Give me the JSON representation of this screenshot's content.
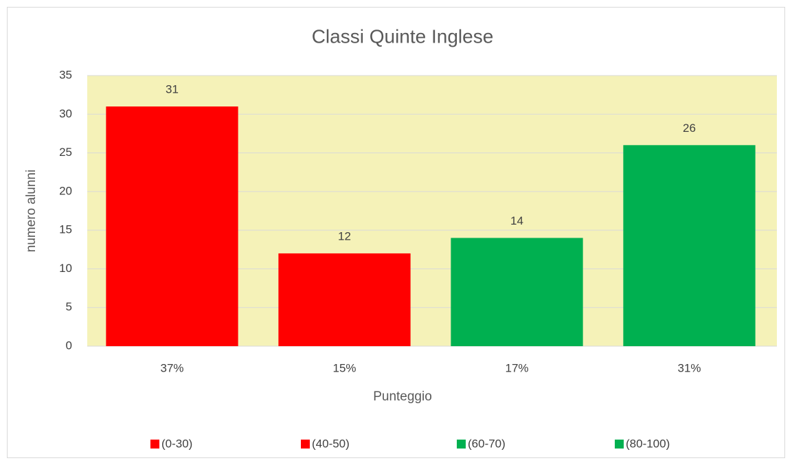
{
  "chart_data": {
    "type": "bar",
    "title": "Classi Quinte Inglese",
    "x_label": "Punteggio",
    "y_label": "numero alunni",
    "categories": [
      "37%",
      "15%",
      "17%",
      "31%"
    ],
    "values": [
      31,
      12,
      14,
      26
    ],
    "bar_names": [
      "(0-30)",
      "(40-50)",
      "(60-70)",
      "(80-100)"
    ],
    "colors": [
      "#ff0000",
      "#ff0000",
      "#00b050",
      "#00b050"
    ],
    "plot_background": "#f5f2b8",
    "ylim": [
      0,
      35
    ],
    "yticks": [
      0,
      5,
      10,
      15,
      20,
      25,
      30,
      35
    ],
    "grid": true,
    "legend": "bottom"
  }
}
